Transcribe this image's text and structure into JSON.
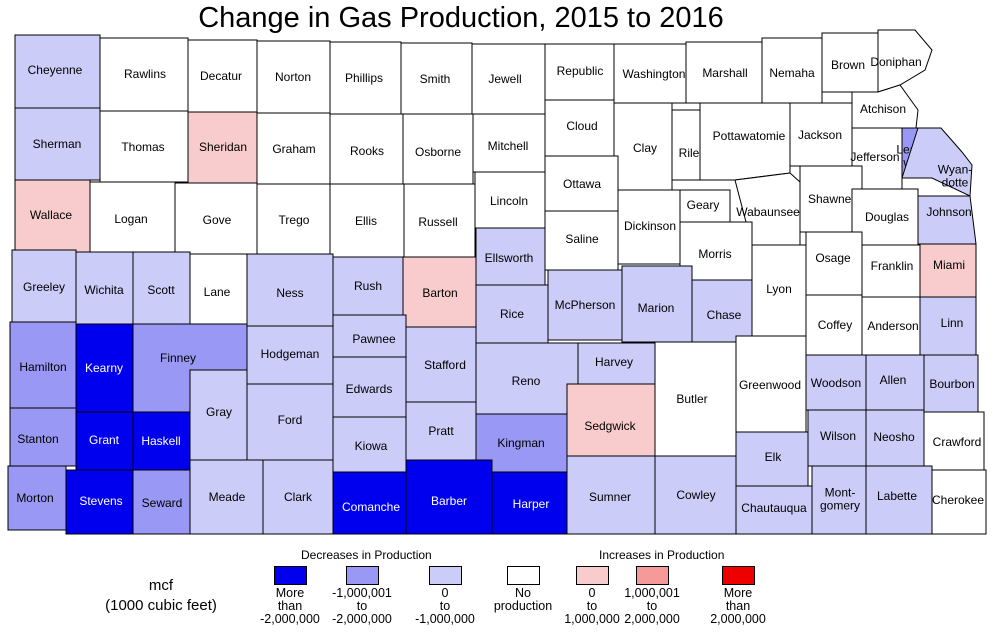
{
  "title": "Change in Gas Production, 2015 to 2016",
  "legend": {
    "unit_line1": "mcf",
    "unit_line2": "(1000 cubic feet)",
    "decreases_heading": "Decreases in Production",
    "increases_heading": "Increases in Production",
    "classes": [
      {
        "key": "d3",
        "label": "More\nthan\n-2,000,000",
        "color": "#0000ee"
      },
      {
        "key": "d2",
        "label": "-1,000,001\nto\n-2,000,000",
        "color": "#9999f5"
      },
      {
        "key": "d1",
        "label": "0\nto\n-1,000,000",
        "color": "#ccccf8"
      },
      {
        "key": "none",
        "label": "No\nproduction",
        "color": "#ffffff"
      },
      {
        "key": "i1",
        "label": "0\nto\n1,000,000",
        "color": "#f8cccc"
      },
      {
        "key": "i2",
        "label": "1,000,001\nto\n2,000,000",
        "color": "#f59999"
      },
      {
        "key": "i3",
        "label": "More\nthan\n2,000,000",
        "color": "#ee0000"
      }
    ]
  },
  "counties": [
    {
      "name": "Cheyenne",
      "class": "d1"
    },
    {
      "name": "Rawlins",
      "class": "none"
    },
    {
      "name": "Decatur",
      "class": "none"
    },
    {
      "name": "Norton",
      "class": "none"
    },
    {
      "name": "Phillips",
      "class": "none"
    },
    {
      "name": "Smith",
      "class": "none"
    },
    {
      "name": "Jewell",
      "class": "none"
    },
    {
      "name": "Republic",
      "class": "none"
    },
    {
      "name": "Washington",
      "class": "none"
    },
    {
      "name": "Marshall",
      "class": "none"
    },
    {
      "name": "Nemaha",
      "class": "none"
    },
    {
      "name": "Brown",
      "class": "none"
    },
    {
      "name": "Doniphan",
      "class": "none"
    },
    {
      "name": "Atchison",
      "class": "none"
    },
    {
      "name": "Sherman",
      "class": "d1"
    },
    {
      "name": "Thomas",
      "class": "none"
    },
    {
      "name": "Sheridan",
      "class": "i1"
    },
    {
      "name": "Graham",
      "class": "none"
    },
    {
      "name": "Rooks",
      "class": "none"
    },
    {
      "name": "Osborne",
      "class": "none"
    },
    {
      "name": "Mitchell",
      "class": "none"
    },
    {
      "name": "Cloud",
      "class": "none"
    },
    {
      "name": "Clay",
      "class": "none"
    },
    {
      "name": "Riley",
      "class": "none"
    },
    {
      "name": "Pottawatomie",
      "class": "none"
    },
    {
      "name": "Jackson",
      "class": "none"
    },
    {
      "name": "Jefferson",
      "class": "none"
    },
    {
      "name": "Leaven-\nworth",
      "class": "d2"
    },
    {
      "name": "Wyan-\ndotte",
      "class": "d1"
    },
    {
      "name": "Wallace",
      "class": "i1"
    },
    {
      "name": "Logan",
      "class": "none"
    },
    {
      "name": "Gove",
      "class": "none"
    },
    {
      "name": "Trego",
      "class": "none"
    },
    {
      "name": "Ellis",
      "class": "none"
    },
    {
      "name": "Russell",
      "class": "none"
    },
    {
      "name": "Lincoln",
      "class": "none"
    },
    {
      "name": "Ottawa",
      "class": "none"
    },
    {
      "name": "Dickinson",
      "class": "none"
    },
    {
      "name": "Geary",
      "class": "none"
    },
    {
      "name": "Wabaunsee",
      "class": "none"
    },
    {
      "name": "Shawnee",
      "class": "none"
    },
    {
      "name": "Douglas",
      "class": "none"
    },
    {
      "name": "Johnson",
      "class": "d1"
    },
    {
      "name": "Saline",
      "class": "none"
    },
    {
      "name": "Morris",
      "class": "none"
    },
    {
      "name": "Greeley",
      "class": "d1"
    },
    {
      "name": "Wichita",
      "class": "d1"
    },
    {
      "name": "Scott",
      "class": "d1"
    },
    {
      "name": "Lane",
      "class": "none"
    },
    {
      "name": "Ness",
      "class": "d1"
    },
    {
      "name": "Rush",
      "class": "d1"
    },
    {
      "name": "Barton",
      "class": "i1"
    },
    {
      "name": "Ellsworth",
      "class": "d1"
    },
    {
      "name": "Rice",
      "class": "d1"
    },
    {
      "name": "McPherson",
      "class": "d1"
    },
    {
      "name": "Marion",
      "class": "d1"
    },
    {
      "name": "Chase",
      "class": "d1"
    },
    {
      "name": "Lyon",
      "class": "none"
    },
    {
      "name": "Osage",
      "class": "none"
    },
    {
      "name": "Franklin",
      "class": "none"
    },
    {
      "name": "Miami",
      "class": "i1"
    },
    {
      "name": "Hamilton",
      "class": "d2"
    },
    {
      "name": "Kearny",
      "class": "d3"
    },
    {
      "name": "Finney",
      "class": "d2"
    },
    {
      "name": "Hodgeman",
      "class": "d1"
    },
    {
      "name": "Pawnee",
      "class": "d1"
    },
    {
      "name": "Stafford",
      "class": "d1"
    },
    {
      "name": "Reno",
      "class": "d1"
    },
    {
      "name": "Harvey",
      "class": "d1"
    },
    {
      "name": "Butler",
      "class": "none"
    },
    {
      "name": "Greenwood",
      "class": "none"
    },
    {
      "name": "Coffey",
      "class": "none"
    },
    {
      "name": "Anderson",
      "class": "none"
    },
    {
      "name": "Linn",
      "class": "d1"
    },
    {
      "name": "Edwards",
      "class": "d1"
    },
    {
      "name": "Woodson",
      "class": "d1"
    },
    {
      "name": "Allen",
      "class": "d1"
    },
    {
      "name": "Bourbon",
      "class": "d1"
    },
    {
      "name": "Gray",
      "class": "d1"
    },
    {
      "name": "Ford",
      "class": "d1"
    },
    {
      "name": "Stanton",
      "class": "d2"
    },
    {
      "name": "Grant",
      "class": "d3"
    },
    {
      "name": "Haskell",
      "class": "d3"
    },
    {
      "name": "Kiowa",
      "class": "d1"
    },
    {
      "name": "Pratt",
      "class": "d1"
    },
    {
      "name": "Kingman",
      "class": "d2"
    },
    {
      "name": "Sedgwick",
      "class": "i1"
    },
    {
      "name": "Elk",
      "class": "d1"
    },
    {
      "name": "Wilson",
      "class": "d1"
    },
    {
      "name": "Neosho",
      "class": "d1"
    },
    {
      "name": "Crawford",
      "class": "none"
    },
    {
      "name": "Morton",
      "class": "d2"
    },
    {
      "name": "Stevens",
      "class": "d3"
    },
    {
      "name": "Seward",
      "class": "d2"
    },
    {
      "name": "Meade",
      "class": "d1"
    },
    {
      "name": "Clark",
      "class": "d1"
    },
    {
      "name": "Comanche",
      "class": "d3"
    },
    {
      "name": "Barber",
      "class": "d3"
    },
    {
      "name": "Harper",
      "class": "d3"
    },
    {
      "name": "Sumner",
      "class": "d1"
    },
    {
      "name": "Cowley",
      "class": "d1"
    },
    {
      "name": "Chautauqua",
      "class": "d1"
    },
    {
      "name": "Mont-\ngomery",
      "class": "d1"
    },
    {
      "name": "Labette",
      "class": "d1"
    },
    {
      "name": "Cherokee",
      "class": "none"
    }
  ]
}
